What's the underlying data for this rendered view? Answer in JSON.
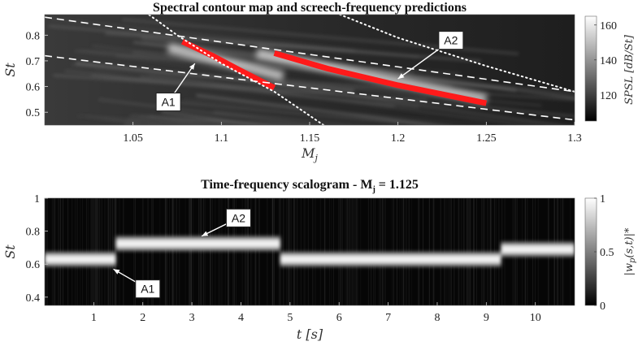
{
  "chart_data": [
    {
      "type": "heatmap",
      "title": "Spectral contour map and screech-frequency predictions",
      "xlabel": "M_j",
      "ylabel": "St",
      "xlim": [
        1.0,
        1.3
      ],
      "ylim": [
        0.45,
        0.88
      ],
      "x_ticks": [
        "1.05",
        "1.1",
        "1.15",
        "1.2",
        "1.25",
        "1.3"
      ],
      "x_tick_values": [
        1.05,
        1.1,
        1.15,
        1.2,
        1.25,
        1.3
      ],
      "y_ticks": [
        "0.5",
        "0.6",
        "0.7",
        "0.8"
      ],
      "y_tick_values": [
        0.5,
        0.6,
        0.7,
        0.8
      ],
      "colorbar": {
        "label": "SPSL [dB/St]",
        "range": [
          105,
          165
        ],
        "ticks": [
          "120",
          "140",
          "160"
        ],
        "tick_values": [
          120,
          140,
          160
        ],
        "colormap": "grayscale"
      },
      "series": [
        {
          "style": "red-thick",
          "color": "#ff1a1a",
          "x": [
            1.078,
            1.095,
            1.11,
            1.13
          ],
          "y": [
            0.775,
            0.72,
            0.665,
            0.595
          ]
        },
        {
          "style": "red-thick",
          "color": "#ff1a1a",
          "x": [
            1.13,
            1.16,
            1.2,
            1.25
          ],
          "y": [
            0.73,
            0.67,
            0.605,
            0.535
          ]
        },
        {
          "style": "white-dashed",
          "color": "#ffffff",
          "x": [
            1.0,
            1.3
          ],
          "y": [
            0.87,
            0.58
          ]
        },
        {
          "style": "white-dashed",
          "color": "#ffffff",
          "x": [
            1.0,
            1.3
          ],
          "y": [
            0.72,
            0.47
          ]
        },
        {
          "style": "white-dotted",
          "color": "#ffffff",
          "x": [
            1.055,
            1.075,
            1.1,
            1.13,
            1.16
          ],
          "y": [
            0.9,
            0.8,
            0.69,
            0.58,
            0.44
          ]
        },
        {
          "style": "white-dotted",
          "color": "#ffffff",
          "x": [
            1.16,
            1.2,
            1.25,
            1.3
          ],
          "y": [
            0.9,
            0.79,
            0.68,
            0.58
          ]
        }
      ],
      "annotations": [
        {
          "text": "A1",
          "x": 1.07,
          "y": 0.54,
          "arrow_to_x": 1.085,
          "arrow_to_y": 0.69
        },
        {
          "text": "A2",
          "x": 1.23,
          "y": 0.78,
          "arrow_to_x": 1.2,
          "arrow_to_y": 0.63
        }
      ]
    },
    {
      "type": "heatmap",
      "title": "Time-frequency scalogram - M",
      "title_subscript": "j",
      "title_suffix": " = 1.125",
      "xlabel": "t [s]",
      "ylabel": "St",
      "xlim": [
        0,
        10.8
      ],
      "ylim": [
        0.35,
        1.0
      ],
      "x_ticks": [
        "1",
        "2",
        "3",
        "4",
        "5",
        "6",
        "7",
        "8",
        "9",
        "10"
      ],
      "x_tick_values": [
        1,
        2,
        3,
        4,
        5,
        6,
        7,
        8,
        9,
        10
      ],
      "y_ticks": [
        "0.4",
        "0.6",
        "0.8",
        "1"
      ],
      "y_tick_values": [
        0.4,
        0.6,
        0.8,
        1.0
      ],
      "colorbar": {
        "label": "|w_p(s,t)|*",
        "range": [
          0,
          1
        ],
        "ticks": [
          "0",
          "0.5",
          "1"
        ],
        "tick_values": [
          0,
          0.5,
          1
        ],
        "colormap": "grayscale"
      },
      "segments": [
        {
          "mode": "A1",
          "t_start": 0.0,
          "t_end": 1.45,
          "st": 0.63
        },
        {
          "mode": "A2",
          "t_start": 1.45,
          "t_end": 4.8,
          "st": 0.725
        },
        {
          "mode": "A1",
          "t_start": 4.8,
          "t_end": 9.3,
          "st": 0.63
        },
        {
          "mode": "A2",
          "t_start": 9.3,
          "t_end": 10.8,
          "st": 0.69
        }
      ],
      "annotations": [
        {
          "text": "A2",
          "x": 3.95,
          "y": 0.88,
          "arrow_to_x": 3.2,
          "arrow_to_y": 0.77
        },
        {
          "text": "A1",
          "x": 2.1,
          "y": 0.45,
          "arrow_to_x": 1.4,
          "arrow_to_y": 0.57
        }
      ]
    }
  ]
}
